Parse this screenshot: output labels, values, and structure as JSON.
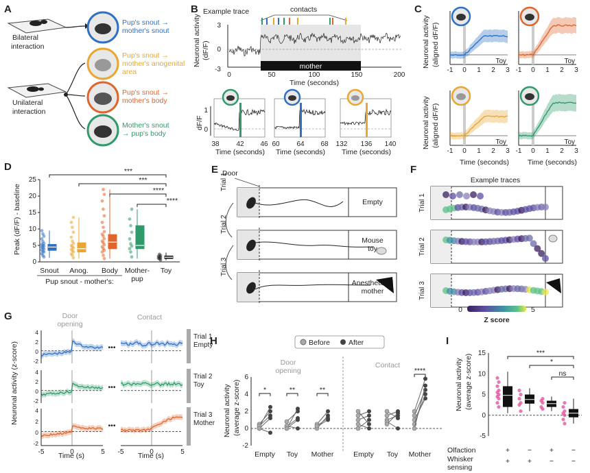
{
  "panels": {
    "A": {
      "letter": "A",
      "bilateral_label": [
        "Bilateral",
        "interaction"
      ],
      "unilateral_label": [
        "Unilateral",
        "interaction"
      ],
      "contacts": [
        {
          "lines": [
            "Pup's snout →",
            "mother's snout"
          ],
          "color": "#2f6fc4"
        },
        {
          "lines": [
            "Pup's snout →",
            "mother's anogenital",
            "area"
          ],
          "color": "#e9a630"
        },
        {
          "lines": [
            "Pup's snout →",
            "mother's body"
          ],
          "color": "#e0652a"
        },
        {
          "lines": [
            "Mother's snout",
            "→ pup's body"
          ],
          "color": "#2f9a6a"
        }
      ]
    },
    "B": {
      "letter": "B",
      "example_trace_label": "Example trace",
      "contacts_label": "contacts",
      "ylabel": [
        "Neuronal activity",
        "(dF/F)"
      ],
      "xlabel": "Time (seconds)",
      "yticks": [
        "3",
        "0",
        "-3"
      ],
      "xticks": [
        "0",
        "50",
        "100",
        "150",
        "200"
      ],
      "bar_label": "mother",
      "zooms": [
        {
          "xticks": [
            "38",
            "42",
            "46"
          ],
          "color": "#2f9a6a"
        },
        {
          "xticks": [
            "60",
            "64",
            "68"
          ],
          "color": "#2f6fc4"
        },
        {
          "xticks": [
            "132",
            "136",
            "140"
          ],
          "color": "#e9a630"
        }
      ],
      "zoom_ylabel": "dF/F",
      "zoom_yticks": [
        "1",
        "0"
      ],
      "zoom_xlabel": "Time (seconds)"
    },
    "C": {
      "letter": "C",
      "ylabel_top": [
        "Neuronal activity",
        "(aligned dF/F)"
      ],
      "ylabel_bottom": [
        "Neuronal activity",
        "(aligned dF/F)"
      ],
      "toy_label": "Toy",
      "xlabel": "Time (seconds)",
      "xticks": [
        "-1",
        "0",
        "1",
        "2",
        "3"
      ],
      "colors": [
        "#2f6fc4",
        "#e0652a",
        "#e9a630",
        "#2f9a6a"
      ]
    },
    "D": {
      "letter": "D",
      "ylabel": "Peak (dF/F) - baseline",
      "yticks": [
        "0",
        "5",
        "10",
        "15",
        "20",
        "25"
      ],
      "groups": [
        "Snout",
        "Anog.",
        "Body",
        "Mother-\npup",
        "Toy"
      ],
      "group_sub": "Pup snout - mother's:",
      "significance": [
        "***",
        "***",
        "****",
        "****"
      ],
      "colors": [
        "#2f6fc4",
        "#e9a630",
        "#e0652a",
        "#2f9a6a",
        "#222222"
      ]
    },
    "E": {
      "letter": "E",
      "door_label": "Door",
      "trials": [
        "Trial 1",
        "Trial 2",
        "Trial 3"
      ],
      "targets": [
        [
          "Empty"
        ],
        [
          "Mouse",
          "toy"
        ],
        [
          "Anesthetized",
          "mother"
        ]
      ]
    },
    "F": {
      "letter": "F",
      "title": "Example traces",
      "trials": [
        "Trial 1",
        "Trial 2",
        "Trial 3"
      ],
      "colorbar_min": "0",
      "colorbar_max": "5",
      "colorbar_label": "Z score"
    },
    "G": {
      "letter": "G",
      "ylabel": "Neuronal activity (z-score)",
      "xlabel": "Time (s)",
      "col_titles": [
        "Door",
        "opening",
        "Contact"
      ],
      "xticks": [
        "-5",
        "0",
        "5"
      ],
      "yticks": [
        "4",
        "2",
        "0",
        "-2"
      ],
      "trials": [
        {
          "label": [
            "Trial 1",
            "Empty"
          ],
          "color": "#2f6fc4"
        },
        {
          "label": [
            "Trial 2",
            "Toy"
          ],
          "color": "#2f9a6a"
        },
        {
          "label": [
            "Trial 3",
            "Mother"
          ],
          "color": "#e0652a"
        }
      ],
      "dots": "•••"
    },
    "H": {
      "letter": "H",
      "legend": [
        "Before",
        "After"
      ],
      "section_titles": [
        "Door",
        "opening",
        "Contact"
      ],
      "ylabel": [
        "Neuronal activity",
        "(average z-score)"
      ],
      "yticks": [
        "6",
        "4",
        "2",
        "0",
        "-2"
      ],
      "groups": [
        "Empty",
        "Toy",
        "Mother",
        "Empty",
        "Toy",
        "Mother"
      ],
      "significance": [
        "*",
        "**",
        "**",
        "****"
      ]
    },
    "I": {
      "letter": "I",
      "ylabel": [
        "Neuronal activity",
        "(average z-score)"
      ],
      "yticks": [
        "15",
        "10",
        "5",
        "0",
        "-5"
      ],
      "row_labels": [
        "Olfaction",
        "Whisker",
        "sensing"
      ],
      "olfaction": [
        "+",
        "−",
        "+",
        "−"
      ],
      "whisker": [
        "+",
        "+",
        "−",
        "−"
      ],
      "significance": [
        "***",
        "*",
        "ns"
      ]
    }
  },
  "chart_data": [
    {
      "type": "box",
      "panel": "D",
      "title": "",
      "ylabel": "Peak (dF/F) - baseline",
      "ylim": [
        0,
        25
      ],
      "categories": [
        "Snout",
        "Anog.",
        "Body",
        "Mother-pup",
        "Toy"
      ],
      "boxes": [
        {
          "q1": 3.5,
          "median": 4.5,
          "q3": 5.3,
          "min": 1.2,
          "max": 9.5
        },
        {
          "q1": 3.0,
          "median": 4.0,
          "q3": 5.8,
          "min": 1.0,
          "max": 13.5
        },
        {
          "q1": 4.0,
          "median": 6.0,
          "q3": 8.3,
          "min": 1.0,
          "max": 22.0
        },
        {
          "q1": 4.0,
          "median": 5.0,
          "q3": 11.0,
          "min": 1.0,
          "max": 16.0
        },
        {
          "q1": 1.0,
          "median": 1.4,
          "q3": 1.8,
          "min": 0.5,
          "max": 2.8
        }
      ],
      "points": [
        [
          1.5,
          2.0,
          2.5,
          3.0,
          3.2,
          3.6,
          3.9,
          4.2,
          4.5,
          4.8,
          5.0,
          5.3,
          5.6,
          6.2,
          7.0,
          7.8,
          8.5,
          9.5
        ],
        [
          1.2,
          2.0,
          2.4,
          3.0,
          3.4,
          3.8,
          4.2,
          4.6,
          5.0,
          5.6,
          6.3,
          7.5,
          9.0,
          10.5,
          12.0,
          13.5
        ],
        [
          1.0,
          2.0,
          3.0,
          3.5,
          4.0,
          4.6,
          5.2,
          5.8,
          6.3,
          7.0,
          7.8,
          8.4,
          9.2,
          10.5,
          12.0,
          14.0,
          16.0,
          18.5,
          20.5,
          22.0
        ],
        [
          1.5,
          3.0,
          4.0,
          4.8,
          5.5,
          7.0,
          9.0,
          11.0,
          13.0,
          16.0
        ],
        [
          0.6,
          0.9,
          1.1,
          1.3,
          1.5,
          1.7,
          1.9,
          2.3
        ]
      ],
      "comparisons": [
        [
          "Snout",
          "Toy",
          "***"
        ],
        [
          "Anog.",
          "Toy",
          "***"
        ],
        [
          "Body",
          "Toy",
          "****"
        ],
        [
          "Mother-pup",
          "Toy",
          "****"
        ]
      ]
    },
    {
      "type": "line",
      "panel": "H",
      "ylabel": "Neuronal activity (average z-score)",
      "ylim": [
        -2,
        6
      ],
      "series_names": [
        "Before",
        "After"
      ],
      "pairs": {
        "door_empty": [
          [
            0.5,
            2.0
          ],
          [
            0.2,
            2.5
          ],
          [
            0.0,
            -0.5
          ],
          [
            0.3,
            1.5
          ],
          [
            0.0,
            1.2
          ]
        ],
        "door_toy": [
          [
            0.8,
            2.0
          ],
          [
            0.2,
            1.2
          ],
          [
            0.0,
            2.3
          ],
          [
            0.3,
            0.0
          ],
          [
            0.0,
            1.0
          ]
        ],
        "door_mother": [
          [
            0.5,
            2.0
          ],
          [
            0.2,
            1.0
          ],
          [
            0.0,
            1.5
          ],
          [
            0.3,
            1.2
          ]
        ],
        "contact_empty": [
          [
            1.5,
            2.0
          ],
          [
            2.0,
            0.5
          ],
          [
            1.0,
            1.5
          ],
          [
            0.0,
            1.0
          ],
          [
            0.5,
            0.0
          ]
        ],
        "contact_toy": [
          [
            1.5,
            2.0
          ],
          [
            2.0,
            1.2
          ],
          [
            1.0,
            1.5
          ],
          [
            0.8,
            0.0
          ],
          [
            0.5,
            1.8
          ]
        ],
        "contact_mother": [
          [
            2.0,
            5.8
          ],
          [
            1.5,
            4.5
          ],
          [
            1.0,
            3.5
          ],
          [
            0.5,
            4.0
          ],
          [
            0.0,
            5.0
          ]
        ]
      },
      "significance": {
        "door_empty": "*",
        "door_toy": "**",
        "door_mother": "**",
        "contact_mother": "****"
      }
    },
    {
      "type": "box",
      "panel": "I",
      "ylabel": "Neuronal activity (average z-score)",
      "ylim": [
        -5,
        15
      ],
      "categories": [
        "Olf+ Whisk+",
        "Olf- Whisk+",
        "Olf+ Whisk-",
        "Olf- Whisk-"
      ],
      "boxes": [
        {
          "q1": 2.0,
          "median": 4.8,
          "q3": 7.0,
          "min": 0.5,
          "max": 10.5
        },
        {
          "q1": 2.8,
          "median": 3.8,
          "q3": 5.0,
          "min": 1.0,
          "max": 6.5
        },
        {
          "q1": 2.0,
          "median": 2.8,
          "q3": 3.5,
          "min": 1.0,
          "max": 4.5
        },
        {
          "q1": -0.5,
          "median": 0.5,
          "q3": 1.5,
          "min": -2.0,
          "max": 4.0
        }
      ],
      "points": [
        [
          2.0,
          3.0,
          4.0,
          4.5,
          5.0,
          5.5,
          6.0,
          7.0,
          8.0,
          9.0
        ],
        [
          1.0,
          2.5,
          3.0,
          4.0,
          5.0,
          6.0
        ],
        [
          1.5,
          2.0,
          3.0,
          3.5,
          4.0
        ],
        [
          -2.0,
          -1.0,
          0.0,
          0.5,
          1.0,
          2.0,
          3.0
        ]
      ],
      "comparisons": [
        [
          "Olf+ Whisk+",
          "Olf- Whisk-",
          "***"
        ],
        [
          "Olf- Whisk+",
          "Olf- Whisk-",
          "*"
        ],
        [
          "Olf+ Whisk-",
          "Olf- Whisk-",
          "ns"
        ]
      ]
    }
  ]
}
